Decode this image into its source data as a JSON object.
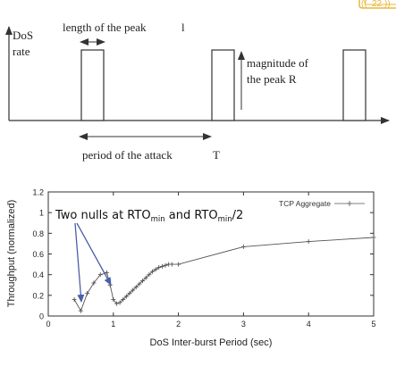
{
  "slide": {
    "page_number": "22",
    "accent_color": "#e8b93a"
  },
  "diagram": {
    "y_label_line1": "DoS",
    "y_label_line2": "rate",
    "length_label": "length of the peak",
    "length_symbol": "l",
    "magnitude_line1": "magnitude of",
    "magnitude_line2": "the peak R",
    "period_label": "period of the attack",
    "period_symbol": "T"
  },
  "annotation": {
    "text_prefix": "Two nulls at RTO",
    "sub1": "min",
    "text_mid": " and RTO",
    "sub2": "min",
    "text_suffix": "/2",
    "arrow_color": "#4a5fa8"
  },
  "chart_data": {
    "type": "line",
    "title": "",
    "xlabel": "DoS Inter-burst Period (sec)",
    "ylabel": "Throughput (normalized)",
    "xlim": [
      0,
      5
    ],
    "ylim": [
      0,
      1.2
    ],
    "xticks": [
      "0",
      "1",
      "2",
      "3",
      "4",
      "5"
    ],
    "yticks": [
      "0",
      "0.2",
      "0.4",
      "0.6",
      "0.8",
      "1",
      "1.2"
    ],
    "legend": "top-right",
    "grid": false,
    "series": [
      {
        "name": "TCP Aggregate",
        "color": "#555555",
        "marker": "plus",
        "x": [
          0.4,
          0.5,
          0.6,
          0.7,
          0.8,
          0.9,
          0.95,
          1.0,
          1.05,
          1.1,
          1.15,
          1.2,
          1.25,
          1.3,
          1.35,
          1.4,
          1.45,
          1.5,
          1.55,
          1.6,
          1.65,
          1.7,
          1.75,
          1.8,
          1.85,
          1.9,
          2.0,
          3.0,
          4.0,
          5.0
        ],
        "values": [
          0.16,
          0.05,
          0.22,
          0.32,
          0.4,
          0.42,
          0.3,
          0.16,
          0.12,
          0.13,
          0.16,
          0.19,
          0.22,
          0.25,
          0.28,
          0.31,
          0.34,
          0.37,
          0.4,
          0.43,
          0.45,
          0.47,
          0.48,
          0.49,
          0.5,
          0.5,
          0.5,
          0.67,
          0.72,
          0.76
        ]
      }
    ]
  }
}
